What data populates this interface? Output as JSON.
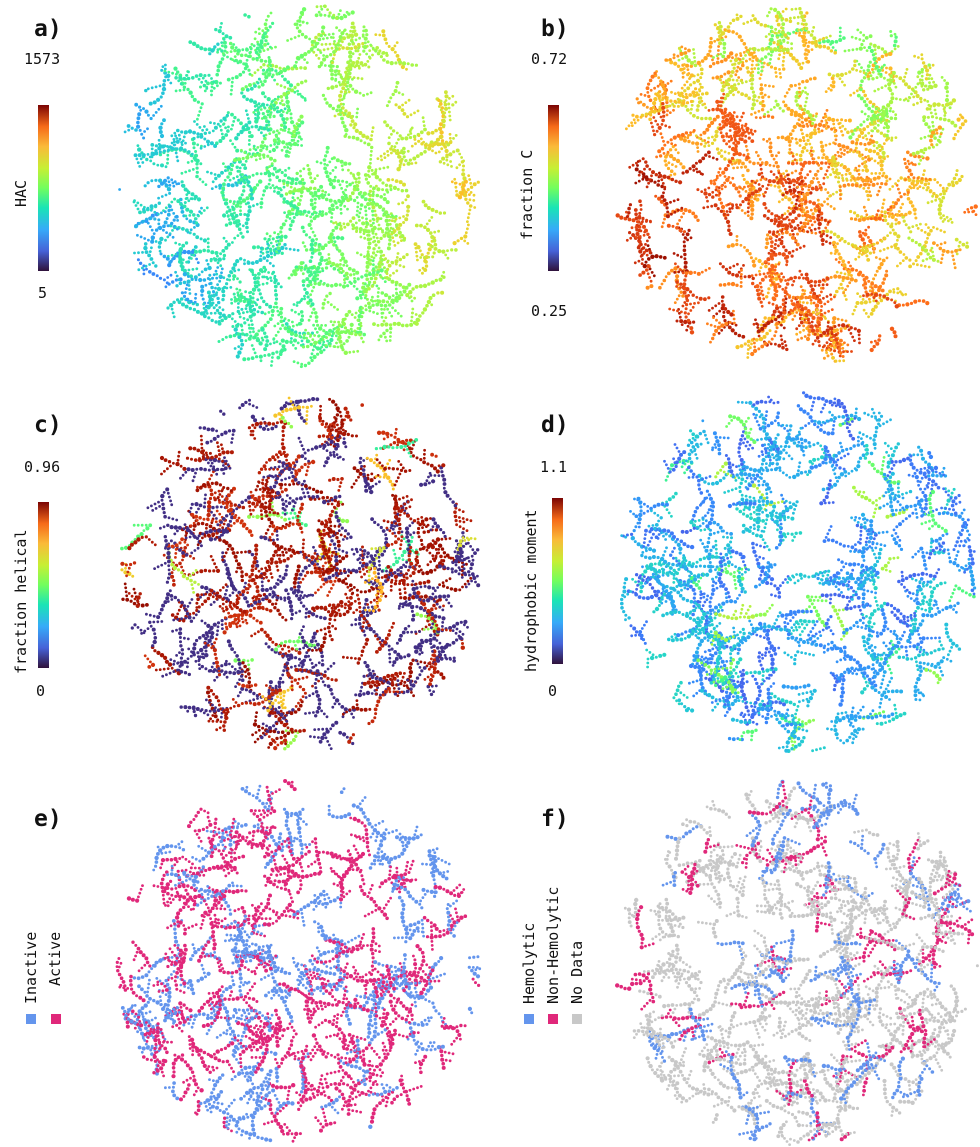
{
  "panels": [
    {
      "letter": "a)",
      "cbar_label": "HAC",
      "max": "1573",
      "min": "5"
    },
    {
      "letter": "b)",
      "cbar_label": "fraction C",
      "max": "0.72",
      "min": "0.25"
    },
    {
      "letter": "c)",
      "cbar_label": "fraction helical",
      "max": "0.96",
      "min": "0"
    },
    {
      "letter": "d)",
      "cbar_label": "hydrophobic moment",
      "max": "1.1",
      "min": "0"
    },
    {
      "letter": "e)",
      "legend": [
        "Inactive",
        "Active"
      ]
    },
    {
      "letter": "f)",
      "legend": [
        "Hemolytic",
        "Non-Hemolytic",
        "No Data"
      ]
    }
  ],
  "colors": {
    "inactive": "#6495ed",
    "active": "#e0287a",
    "no_data": "#c8c8c8",
    "colormap": "turbo"
  }
}
